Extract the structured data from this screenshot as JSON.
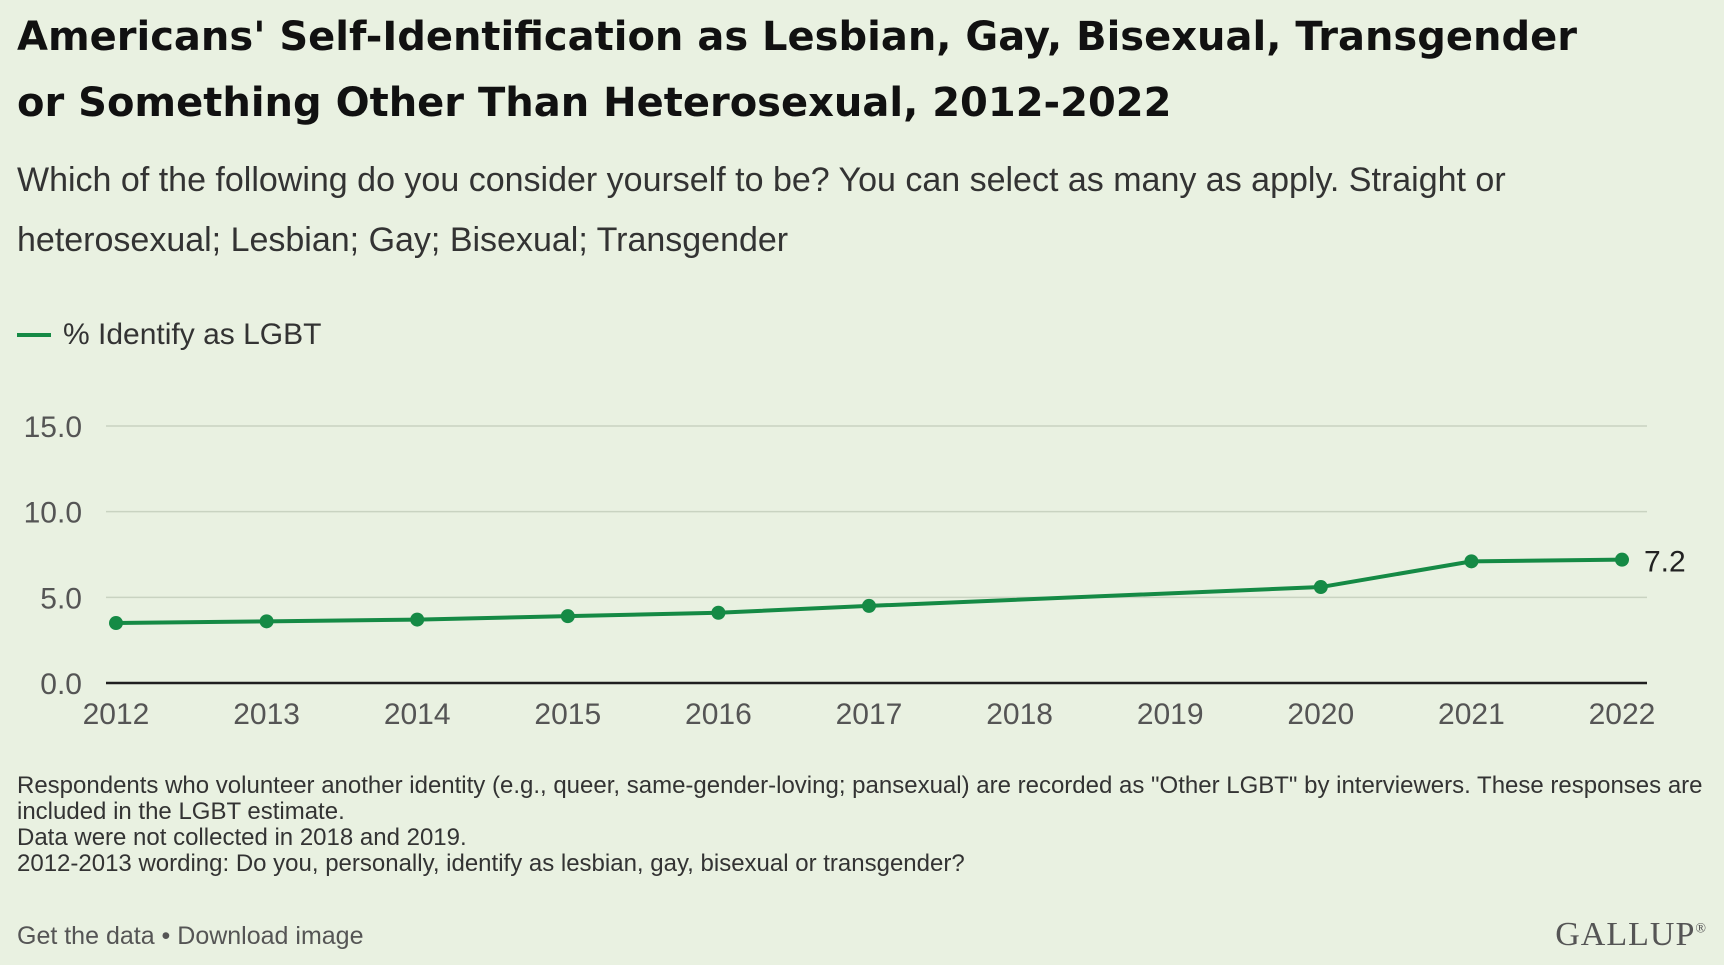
{
  "header": {
    "title": "Americans' Self-Identification as Lesbian, Gay, Bisexual, Transgender or Something Other Than Heterosexual, 2012-2022",
    "subtitle": "Which of the following do you consider yourself to be? You can select as many as apply. Straight or heterosexual; Lesbian; Gay; Bisexual; Transgender"
  },
  "colors": {
    "background": "#e9f1e1",
    "series": "#158a45",
    "grid": "#c9d3c1",
    "axis": "#1f1f1f"
  },
  "chart_data": {
    "type": "line",
    "title": "Americans' Self-Identification as Lesbian, Gay, Bisexual, Transgender or Something Other Than Heterosexual, 2012-2022",
    "subtitle": "Which of the following do you consider yourself to be? You can select as many as apply. Straight or heterosexual; Lesbian; Gay; Bisexual; Transgender",
    "xlabel": "",
    "ylabel": "",
    "x_ticks": [
      "2012",
      "2013",
      "2014",
      "2015",
      "2016",
      "2017",
      "2018",
      "2019",
      "2020",
      "2021",
      "2022"
    ],
    "y_ticks": [
      "0.0",
      "5.0",
      "10.0",
      "15.0"
    ],
    "xlim": [
      2012,
      2022
    ],
    "ylim": [
      0,
      15
    ],
    "grid": true,
    "legend_position": "top-left",
    "series": [
      {
        "name": "% Identify as LGBT",
        "x": [
          2012,
          2013,
          2014,
          2015,
          2016,
          2017,
          2020,
          2021,
          2022
        ],
        "y": [
          3.5,
          3.6,
          3.7,
          3.9,
          4.1,
          4.5,
          5.6,
          7.1,
          7.2
        ]
      }
    ],
    "end_label": "7.2"
  },
  "footnotes": [
    "Respondents who volunteer another identity (e.g., queer, same-gender-loving; pansexual) are recorded as \"Other LGBT\" by interviewers. These responses are included in the LGBT estimate.",
    "Data were not collected in 2018 and 2019.",
    "2012-2013 wording: Do you, personally, identify as lesbian, gay, bisexual or transgender?"
  ],
  "footer": {
    "get_data": "Get the data",
    "separator": " • ",
    "download": "Download image",
    "brand": "GALLUP",
    "brand_mark": "®"
  }
}
